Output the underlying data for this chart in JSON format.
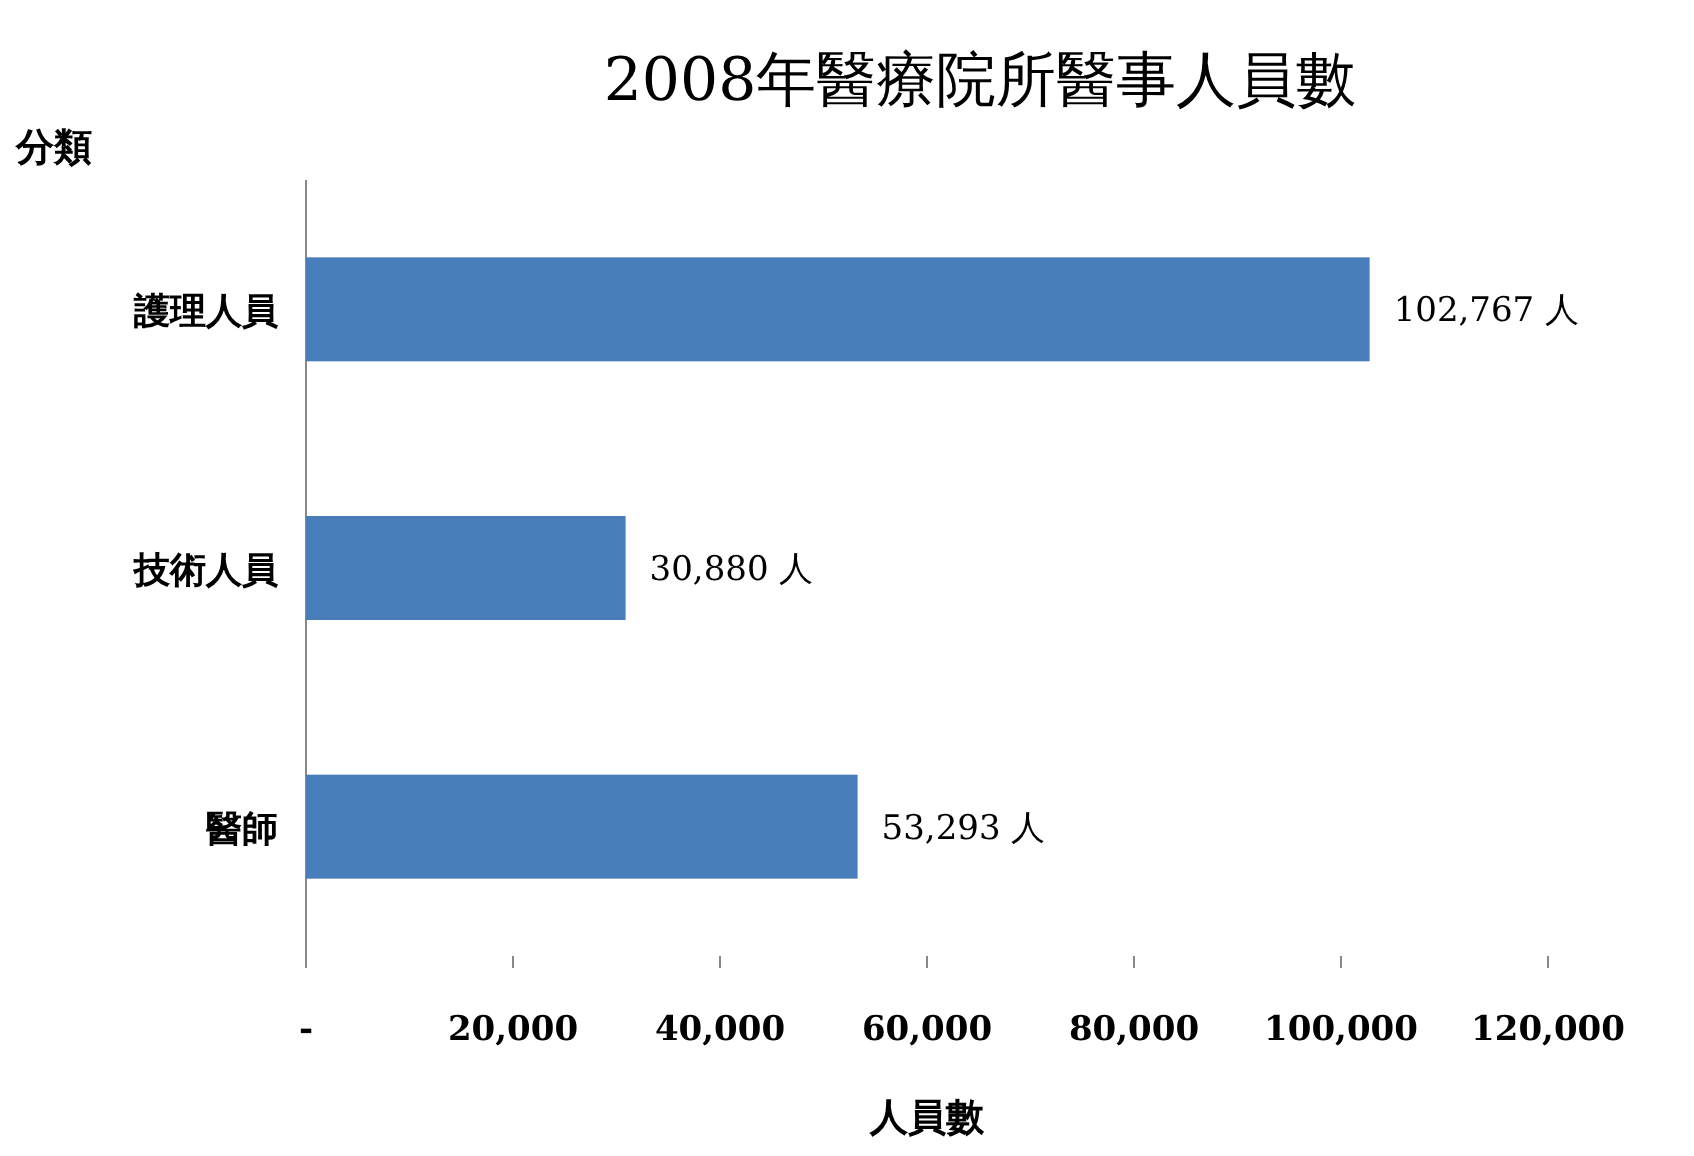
{
  "chart_data": {
    "type": "bar",
    "orientation": "horizontal",
    "title": "2008年醫療院所醫事人員數",
    "xlabel": "人員數",
    "ylabel": "分類",
    "categories": [
      "護理人員",
      "技術人員",
      "醫師"
    ],
    "values": [
      102767,
      30880,
      53293
    ],
    "value_labels": [
      "102,767 人",
      "30,880 人",
      "53,293 人"
    ],
    "color": "#4a7ebb",
    "xlim": [
      0,
      120000
    ],
    "xticks": [
      {
        "value": 0,
        "label": "-"
      },
      {
        "value": 20000,
        "label": "20,000"
      },
      {
        "value": 40000,
        "label": "40,000"
      },
      {
        "value": 60000,
        "label": "60,000"
      },
      {
        "value": 80000,
        "label": "80,000"
      },
      {
        "value": 100000,
        "label": "100,000"
      },
      {
        "value": 120000,
        "label": "120,000"
      }
    ]
  }
}
